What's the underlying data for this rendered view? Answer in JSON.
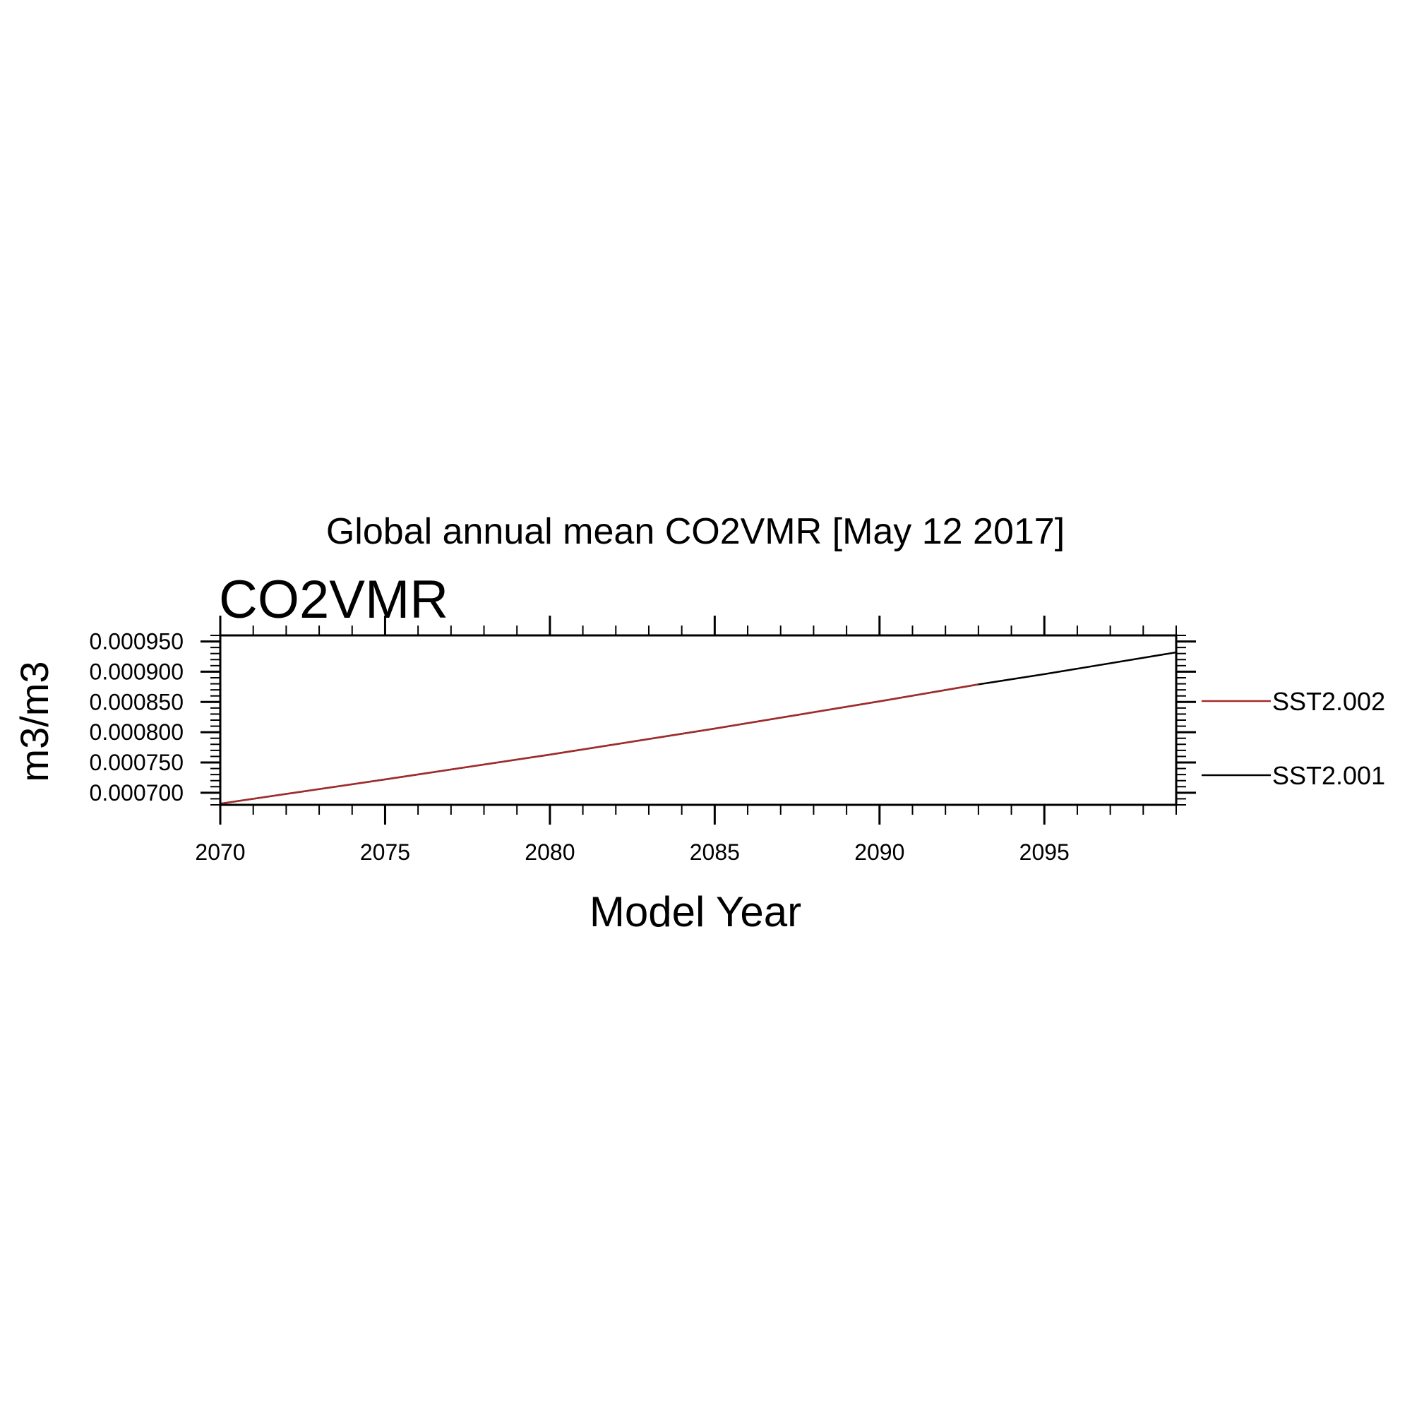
{
  "chart_data": {
    "type": "line",
    "title": "Global annual mean CO2VMR [May 12 2017]",
    "subtitle": "CO2VMR",
    "xlabel": "Model Year",
    "ylabel": "m3/m3",
    "xlim": [
      2070,
      2099
    ],
    "ylim": [
      0.00068,
      0.00096
    ],
    "xticks": [
      2070,
      2075,
      2080,
      2085,
      2090,
      2095
    ],
    "xtick_labels": [
      "2070",
      "2075",
      "2080",
      "2085",
      "2090",
      "2095"
    ],
    "yticks": [
      0.0007,
      0.00075,
      0.0008,
      0.00085,
      0.0009,
      0.00095
    ],
    "ytick_labels": [
      "0.000700",
      "0.000750",
      "0.000800",
      "0.000850",
      "0.000900",
      "0.000950"
    ],
    "legend_position": "right",
    "series": [
      {
        "name": "SST2.001",
        "color": "#000000",
        "x": [
          2070,
          2075,
          2080,
          2085,
          2090,
          2093,
          2095,
          2099
        ],
        "y": [
          0.000682,
          0.000722,
          0.000763,
          0.000806,
          0.000851,
          0.000879,
          0.000896,
          0.000932
        ]
      },
      {
        "name": "SST2.002",
        "color": "#a52a2a",
        "x": [
          2070,
          2075,
          2080,
          2085,
          2090,
          2093
        ],
        "y": [
          0.000682,
          0.000722,
          0.000763,
          0.000806,
          0.000851,
          0.000879
        ]
      }
    ]
  }
}
